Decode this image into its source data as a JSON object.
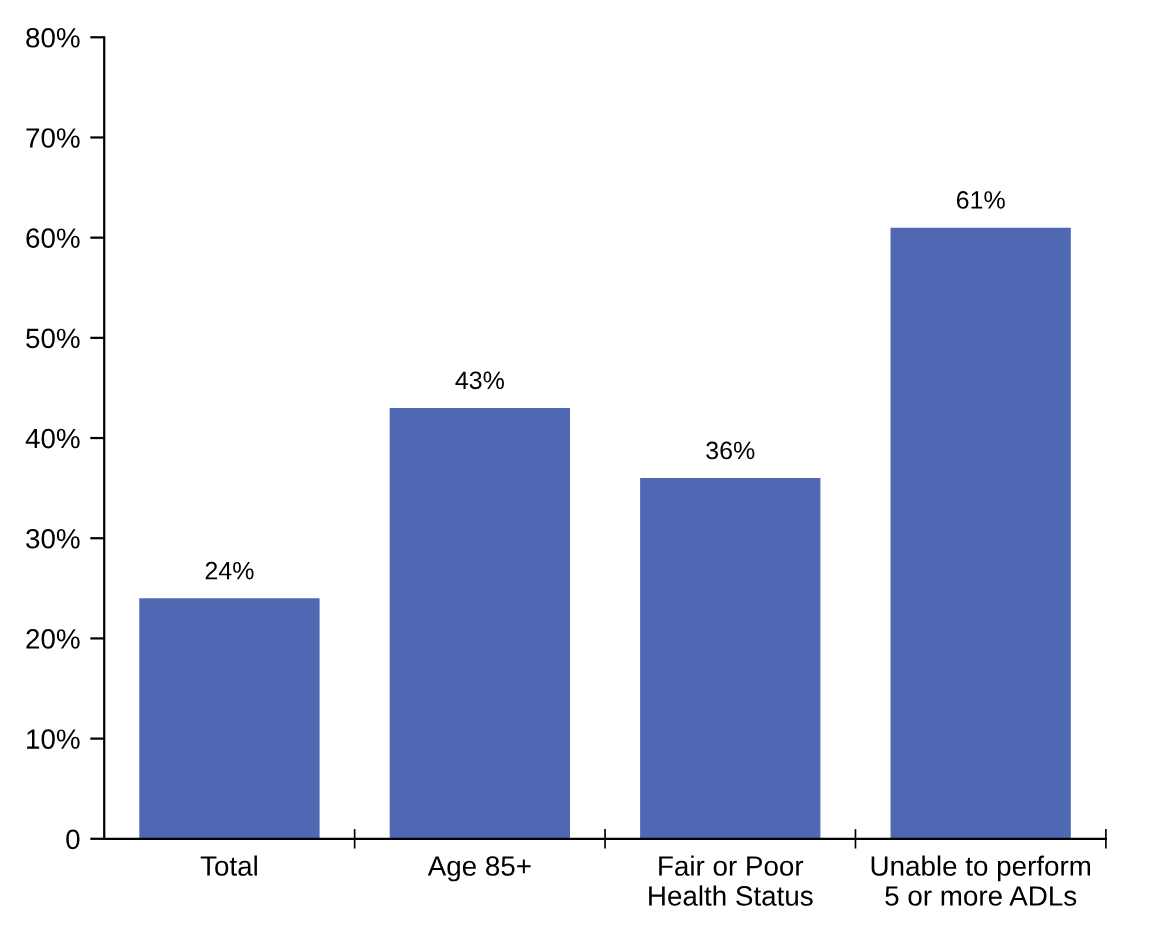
{
  "chart_data": {
    "type": "bar",
    "categories": [
      "Total",
      "Age 85+",
      "Fair or Poor\nHealth Status",
      "Unable to perform\n5 or more ADLs"
    ],
    "values": [
      24,
      43,
      36,
      61
    ],
    "value_labels": [
      "24%",
      "43%",
      "36%",
      "61%"
    ],
    "color": "#4f68b3",
    "ylim": [
      0,
      80
    ],
    "yticks": [
      0,
      {
        "value": 10,
        "label": "10%"
      },
      {
        "value": 20,
        "label": "20%"
      },
      {
        "value": 30,
        "label": "30%"
      },
      {
        "value": 40,
        "label": "40%"
      },
      {
        "value": 50,
        "label": "50%"
      },
      {
        "value": 60,
        "label": "60%"
      },
      {
        "value": 70,
        "label": "70%"
      },
      {
        "value": 80,
        "label": "80%"
      }
    ],
    "grid": false,
    "legend": false
  }
}
